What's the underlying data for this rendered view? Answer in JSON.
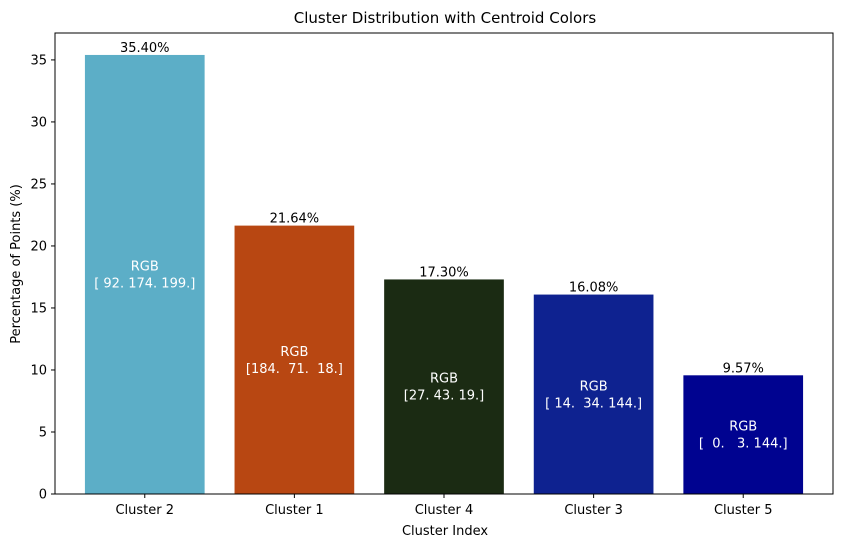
{
  "chart_data": {
    "type": "bar",
    "title": "Cluster Distribution with Centroid Colors",
    "xlabel": "Cluster Index",
    "ylabel": "Percentage of Points (%)",
    "ylim": [
      0,
      37.17
    ],
    "yticks": [
      0,
      5,
      10,
      15,
      20,
      25,
      30,
      35
    ],
    "grid": false,
    "categories": [
      "Cluster 2",
      "Cluster 1",
      "Cluster 4",
      "Cluster 3",
      "Cluster 5"
    ],
    "values": [
      35.4,
      21.64,
      17.3,
      16.08,
      9.57
    ],
    "value_labels": [
      "35.40%",
      "21.64%",
      "17.30%",
      "16.08%",
      "9.57%"
    ],
    "bar_text_heading": "RGB",
    "bar_rgb_labels": [
      "[ 92. 174. 199.]",
      "[184.  71.  18.]",
      "[27. 43. 19.]",
      "[ 14.  34. 144.]",
      "[  0.   3. 144.]"
    ],
    "colors": [
      "#5caec7",
      "#b84712",
      "#1b2b13",
      "#0e2290",
      "#000390"
    ]
  }
}
